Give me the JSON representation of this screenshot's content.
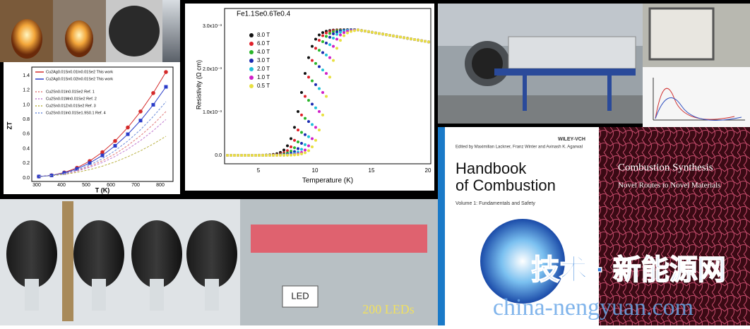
{
  "zt_chart": {
    "y_label": "ZT",
    "x_label": "T (K)",
    "y_ticks": [
      "0.0",
      "0.2",
      "0.4",
      "0.6",
      "0.8",
      "1.0",
      "1.2",
      "1.4"
    ],
    "x_ticks": [
      "300",
      "400",
      "500",
      "600",
      "700",
      "800"
    ],
    "legend": [
      {
        "label": "Cu2Ag0.01Sn0.01In0.01Se2   This work",
        "color": "#d42a2a"
      },
      {
        "label": "Cu2Ag0.01Sn0.02In0.01Se2   This work",
        "color": "#2a3cc8"
      },
      {
        "label": "Cu2Sn0.01In0.01Se2   Ref. 1",
        "color": "#e07a7a"
      },
      {
        "label": "Cu2Sn0.01Mn0.01Se2   Ref. 2",
        "color": "#c07ad0"
      },
      {
        "label": "Cu2Sn0.01Zn0.01Se2   Ref. 3",
        "color": "#b8b040"
      },
      {
        "label": "Cu2Sn0.01In0.01Se1.9S0.1   Ref. 4",
        "color": "#6a8ad8"
      }
    ]
  },
  "resistivity_chart": {
    "title": "Fe1.1Se0.6Te0.4",
    "y_label": "Resistivity (Ω cm)",
    "x_label": "Temperature (K)",
    "y_ticks": [
      "0.0",
      "1.0x10⁻³",
      "2.0x10⁻³",
      "3.0x10⁻³"
    ],
    "x_ticks": [
      "5",
      "10",
      "15",
      "20"
    ],
    "legend": [
      {
        "label": "8.0 T",
        "color": "#111111"
      },
      {
        "label": "6.0 T",
        "color": "#e0202a"
      },
      {
        "label": "4.0 T",
        "color": "#2ab52a"
      },
      {
        "label": "3.0 T",
        "color": "#1a2ab0"
      },
      {
        "label": "2.0 T",
        "color": "#20c0d8"
      },
      {
        "label": "1.0 T",
        "color": "#d020c8"
      },
      {
        "label": "0.5 T",
        "color": "#e8e040"
      }
    ]
  },
  "led_photo": {
    "sign": "LED",
    "caption": "200 LEDs"
  },
  "book_handbook": {
    "editors": "Edited by Maximilian Lackner, Franz Winter and Avinash K. Agarwal",
    "publisher": "WILEY-VCH",
    "title_line1": "Handbook",
    "title_line2": "of Combustion",
    "volume": "Volume 1: Fundamentals and Safety"
  },
  "book_synthesis": {
    "title": "Combustion Synthesis",
    "subtitle": "Novel Routes to Novel Materials"
  },
  "watermark": {
    "cn": "技术 · 新能源网",
    "url": "china-nengyuan.com"
  }
}
